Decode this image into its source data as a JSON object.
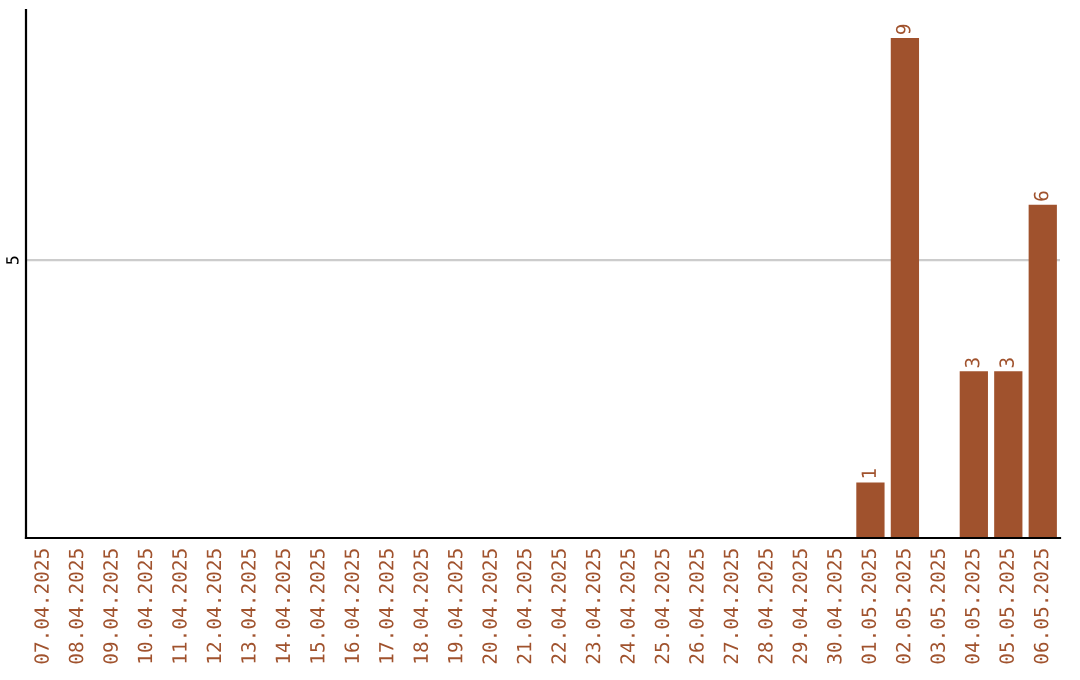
{
  "chart_data": {
    "type": "bar",
    "categories": [
      "07.04.2025",
      "08.04.2025",
      "09.04.2025",
      "10.04.2025",
      "11.04.2025",
      "12.04.2025",
      "13.04.2025",
      "14.04.2025",
      "15.04.2025",
      "16.04.2025",
      "17.04.2025",
      "18.04.2025",
      "19.04.2025",
      "20.04.2025",
      "21.04.2025",
      "22.04.2025",
      "23.04.2025",
      "24.04.2025",
      "25.04.2025",
      "26.04.2025",
      "27.04.2025",
      "28.04.2025",
      "29.04.2025",
      "30.04.2025",
      "01.05.2025",
      "02.05.2025",
      "03.05.2025",
      "04.05.2025",
      "05.05.2025",
      "06.05.2025"
    ],
    "values": [
      null,
      null,
      null,
      null,
      null,
      null,
      null,
      null,
      null,
      null,
      null,
      null,
      null,
      null,
      null,
      null,
      null,
      null,
      null,
      null,
      null,
      null,
      null,
      null,
      1,
      9,
      null,
      3,
      3,
      6
    ],
    "data_labels": true,
    "color": "#a0522d",
    "ref_lines": [
      {
        "axis": "y",
        "value": 5,
        "label": "5",
        "color": "#cccccc"
      }
    ],
    "legend": false
  }
}
